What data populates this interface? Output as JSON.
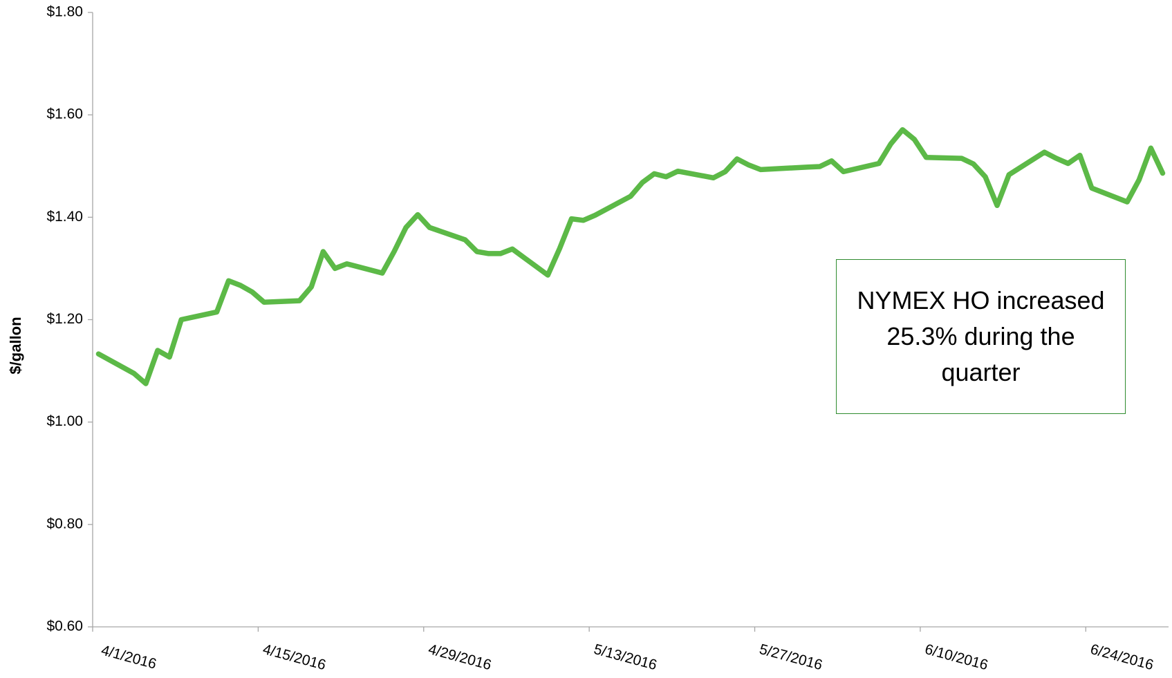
{
  "chart_data": {
    "type": "line",
    "y_label": "$/gallon",
    "annotation": "NYMEX HO increased 25.3% during the quarter",
    "x": [
      "2016-04-01",
      "2016-04-04",
      "2016-04-05",
      "2016-04-06",
      "2016-04-07",
      "2016-04-08",
      "2016-04-11",
      "2016-04-12",
      "2016-04-13",
      "2016-04-14",
      "2016-04-15",
      "2016-04-18",
      "2016-04-19",
      "2016-04-20",
      "2016-04-21",
      "2016-04-22",
      "2016-04-25",
      "2016-04-26",
      "2016-04-27",
      "2016-04-28",
      "2016-04-29",
      "2016-05-02",
      "2016-05-03",
      "2016-05-04",
      "2016-05-05",
      "2016-05-06",
      "2016-05-09",
      "2016-05-10",
      "2016-05-11",
      "2016-05-12",
      "2016-05-13",
      "2016-05-16",
      "2016-05-17",
      "2016-05-18",
      "2016-05-19",
      "2016-05-20",
      "2016-05-23",
      "2016-05-24",
      "2016-05-25",
      "2016-05-26",
      "2016-05-27",
      "2016-05-31",
      "2016-06-01",
      "2016-06-02",
      "2016-06-03",
      "2016-06-06",
      "2016-06-07",
      "2016-06-08",
      "2016-06-09",
      "2016-06-10",
      "2016-06-13",
      "2016-06-14",
      "2016-06-15",
      "2016-06-16",
      "2016-06-17",
      "2016-06-20",
      "2016-06-21",
      "2016-06-22",
      "2016-06-23",
      "2016-06-24",
      "2016-06-27",
      "2016-06-28",
      "2016-06-29",
      "2016-06-30"
    ],
    "series": [
      {
        "name": "NYMEX HO",
        "color": "#5cb947",
        "values": [
          1.133,
          1.095,
          1.075,
          1.14,
          1.127,
          1.2,
          1.215,
          1.276,
          1.267,
          1.254,
          1.234,
          1.237,
          1.264,
          1.333,
          1.3,
          1.309,
          1.291,
          1.333,
          1.38,
          1.405,
          1.38,
          1.356,
          1.333,
          1.329,
          1.329,
          1.338,
          1.287,
          1.339,
          1.397,
          1.394,
          1.404,
          1.441,
          1.468,
          1.485,
          1.479,
          1.49,
          1.477,
          1.489,
          1.514,
          1.502,
          1.493,
          1.498,
          1.499,
          1.51,
          1.489,
          1.505,
          1.543,
          1.571,
          1.552,
          1.517,
          1.515,
          1.504,
          1.479,
          1.423,
          1.483,
          1.527,
          1.515,
          1.505,
          1.521,
          1.457,
          1.43,
          1.473,
          1.535,
          1.486
        ]
      }
    ],
    "xlim": [
      "2016-04-01",
      "2016-07-01"
    ],
    "xticks": [
      {
        "value": "2016-04-01",
        "label": "4/1/2016"
      },
      {
        "value": "2016-04-15",
        "label": "4/15/2016"
      },
      {
        "value": "2016-04-29",
        "label": "4/29/2016"
      },
      {
        "value": "2016-05-13",
        "label": "5/13/2016"
      },
      {
        "value": "2016-05-27",
        "label": "5/27/2016"
      },
      {
        "value": "2016-06-10",
        "label": "6/10/2016"
      },
      {
        "value": "2016-06-24",
        "label": "6/24/2016"
      }
    ],
    "ylim": [
      0.6,
      1.8
    ],
    "yticks": [
      {
        "value": 0.6,
        "label": "$0.60"
      },
      {
        "value": 0.8,
        "label": "$0.80"
      },
      {
        "value": 1.0,
        "label": "$1.00"
      },
      {
        "value": 1.2,
        "label": "$1.20"
      },
      {
        "value": 1.4,
        "label": "$1.40"
      },
      {
        "value": 1.6,
        "label": "$1.60"
      },
      {
        "value": 1.8,
        "label": "$1.80"
      }
    ],
    "grid": false
  }
}
